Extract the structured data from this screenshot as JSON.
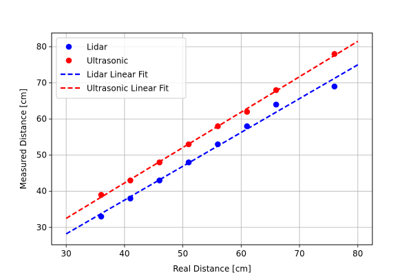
{
  "chart_data": {
    "type": "scatter",
    "title": "",
    "xlabel": "Real Distance [cm]",
    "ylabel": "Measured Distance [cm]",
    "xlim": [
      27.5,
      82.5
    ],
    "ylim": [
      25.2,
      83.8
    ],
    "xticks": [
      30,
      40,
      50,
      60,
      70,
      80
    ],
    "yticks": [
      30,
      40,
      50,
      60,
      70,
      80
    ],
    "grid": true,
    "legend_position": "top-left",
    "series": [
      {
        "name": "Lidar",
        "kind": "scatter",
        "color": "#0000ff",
        "x": [
          36,
          41,
          46,
          51,
          56,
          61,
          66,
          76
        ],
        "y": [
          33,
          38,
          43,
          48,
          53,
          58,
          64,
          69
        ]
      },
      {
        "name": "Ultrasonic",
        "kind": "scatter",
        "color": "#ff0000",
        "x": [
          36,
          41,
          46,
          51,
          56,
          61,
          66,
          76
        ],
        "y": [
          39,
          43,
          48,
          53,
          58,
          62,
          68,
          78
        ]
      },
      {
        "name": "Lidar Linear Fit",
        "kind": "line",
        "style": "dashed",
        "color": "#0000ff",
        "x": [
          30,
          80
        ],
        "y": [
          28.2,
          75.0
        ]
      },
      {
        "name": "Ultrasonic Linear Fit",
        "kind": "line",
        "style": "dashed",
        "color": "#ff0000",
        "x": [
          30,
          80
        ],
        "y": [
          32.5,
          81.5
        ]
      }
    ]
  }
}
